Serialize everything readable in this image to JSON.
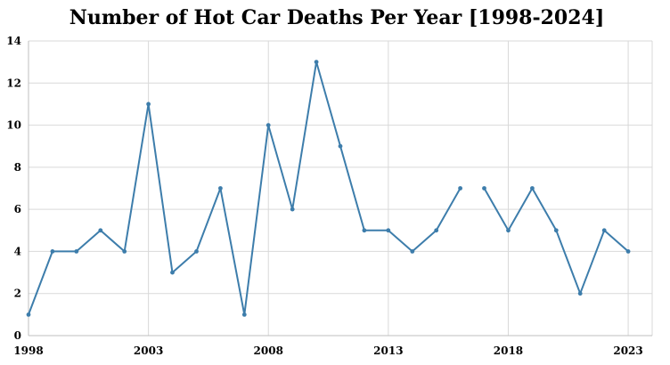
{
  "chart_data": {
    "type": "line",
    "title": "Number of Hot Car Deaths Per Year [1998-2024]",
    "xlabel": "",
    "ylabel": "",
    "xlim": [
      1998,
      2024
    ],
    "ylim": [
      0,
      14
    ],
    "x_ticks": [
      1998,
      2003,
      2008,
      2013,
      2018,
      2023
    ],
    "y_ticks": [
      0,
      2,
      4,
      6,
      8,
      10,
      12,
      14
    ],
    "grid": true,
    "legend": "none",
    "color": "#3d7dab",
    "x": [
      1998,
      1999,
      2000,
      2001,
      2002,
      2003,
      2004,
      2005,
      2006,
      2007,
      2008,
      2009,
      2010,
      2011,
      2012,
      2013,
      2014,
      2015,
      2016,
      2017,
      2018,
      2019,
      2020,
      2021,
      2022,
      2023
    ],
    "values": [
      1,
      4,
      4,
      5,
      4,
      11,
      3,
      4,
      7,
      1,
      10,
      6,
      13,
      9,
      5,
      5,
      4,
      5,
      7,
      7,
      5,
      7,
      5,
      2,
      5,
      4
    ],
    "segment_breaks_after": [
      2016
    ]
  }
}
